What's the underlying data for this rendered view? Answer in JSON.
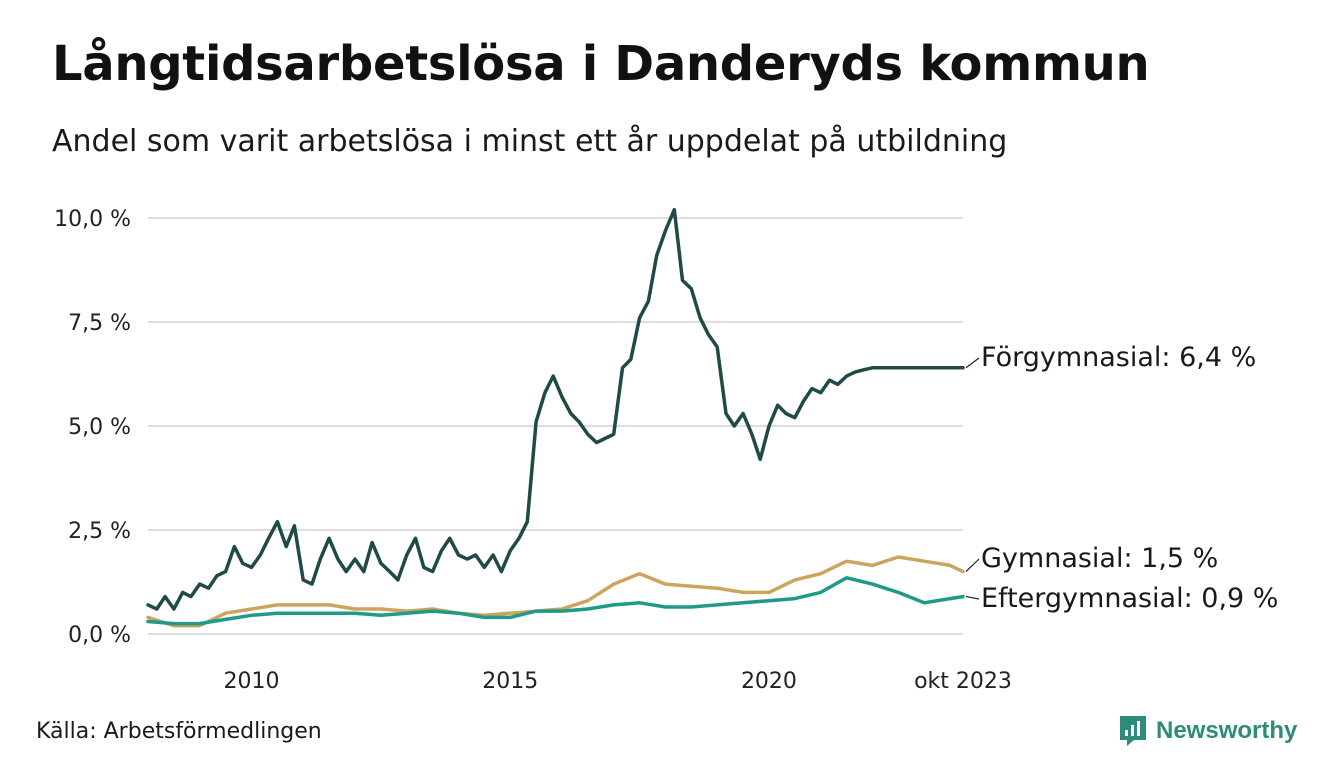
{
  "header": {
    "title": "Långtidsarbetslösa i Danderyds kommun",
    "subtitle": "Andel som varit arbetslösa i minst ett år uppdelat på utbildning"
  },
  "footer": {
    "source": "Källa: Arbetsförmedlingen",
    "brand": "Newsworthy"
  },
  "colors": {
    "forgymnasial": "#1f4a45",
    "gymnasial": "#cda45c",
    "eftergymnasial": "#1f9a8a",
    "grid": "#dddddd",
    "brand": "#2e8b7a"
  },
  "chart_data": {
    "type": "line",
    "title": "Långtidsarbetslösa i Danderyds kommun",
    "subtitle": "Andel som varit arbetslösa i minst ett år uppdelat på utbildning",
    "xlabel": "",
    "ylabel": "",
    "xlim": [
      2008.0,
      2023.75
    ],
    "ylim": [
      0,
      10
    ],
    "grid": true,
    "yticks": [
      0,
      2.5,
      5,
      7.5,
      10
    ],
    "ytick_labels": [
      "0,0 %",
      "2,5 %",
      "5,0 %",
      "7,5 %",
      "10,0 %"
    ],
    "xticks": [
      2010,
      2015,
      2020,
      2023.75
    ],
    "xtick_labels": [
      "2010",
      "2015",
      "2020",
      "okt 2023"
    ],
    "series": [
      {
        "name": "Förgymnasial",
        "end_label": "Förgymnasial: 6,4 %",
        "color": "#1f4a45",
        "x": [
          2008.0,
          2008.17,
          2008.33,
          2008.5,
          2008.67,
          2008.83,
          2009.0,
          2009.17,
          2009.33,
          2009.5,
          2009.67,
          2009.83,
          2010.0,
          2010.17,
          2010.33,
          2010.5,
          2010.67,
          2010.83,
          2011.0,
          2011.17,
          2011.33,
          2011.5,
          2011.67,
          2011.83,
          2012.0,
          2012.17,
          2012.33,
          2012.5,
          2012.67,
          2012.83,
          2013.0,
          2013.17,
          2013.33,
          2013.5,
          2013.67,
          2013.83,
          2014.0,
          2014.17,
          2014.33,
          2014.5,
          2014.67,
          2014.83,
          2015.0,
          2015.17,
          2015.33,
          2015.5,
          2015.67,
          2015.83,
          2016.0,
          2016.17,
          2016.33,
          2016.5,
          2016.67,
          2016.83,
          2017.0,
          2017.17,
          2017.33,
          2017.5,
          2017.67,
          2017.83,
          2018.0,
          2018.17,
          2018.33,
          2018.5,
          2018.67,
          2018.83,
          2019.0,
          2019.17,
          2019.33,
          2019.5,
          2019.67,
          2019.83,
          2020.0,
          2020.17,
          2020.33,
          2020.5,
          2020.67,
          2020.83,
          2021.0,
          2021.17,
          2021.33,
          2021.5,
          2021.67,
          2021.83,
          2022.0,
          2022.17,
          2022.33,
          2022.5,
          2022.67,
          2022.83,
          2023.0,
          2023.17,
          2023.33,
          2023.5,
          2023.75
        ],
        "values": [
          0.7,
          0.6,
          0.9,
          0.6,
          1.0,
          0.9,
          1.2,
          1.1,
          1.4,
          1.5,
          2.1,
          1.7,
          1.6,
          1.9,
          2.3,
          2.7,
          2.1,
          2.6,
          1.3,
          1.2,
          1.8,
          2.3,
          1.8,
          1.5,
          1.8,
          1.5,
          2.2,
          1.7,
          1.5,
          1.3,
          1.9,
          2.3,
          1.6,
          1.5,
          2.0,
          2.3,
          1.9,
          1.8,
          1.9,
          1.6,
          1.9,
          1.5,
          2.0,
          2.3,
          2.7,
          5.1,
          5.8,
          6.2,
          5.7,
          5.3,
          5.1,
          4.8,
          4.6,
          4.7,
          4.8,
          6.4,
          6.6,
          7.6,
          8.0,
          9.1,
          9.7,
          10.2,
          8.5,
          8.3,
          7.6,
          7.2,
          6.9,
          5.3,
          5.0,
          5.3,
          4.8,
          4.2,
          5.0,
          5.5,
          5.3,
          5.2,
          5.6,
          5.9,
          5.8,
          6.1,
          6.0,
          6.2,
          6.3,
          6.35,
          6.4,
          6.4,
          6.4,
          6.4,
          6.4,
          6.4,
          6.4,
          6.4,
          6.4,
          6.4,
          6.4
        ]
      },
      {
        "name": "Gymnasial",
        "end_label": "Gymnasial: 1,5 %",
        "color": "#cda45c",
        "x": [
          2008.0,
          2008.5,
          2009.0,
          2009.5,
          2010.0,
          2010.5,
          2011.0,
          2011.5,
          2012.0,
          2012.5,
          2013.0,
          2013.5,
          2014.0,
          2014.5,
          2015.0,
          2015.5,
          2016.0,
          2016.5,
          2017.0,
          2017.5,
          2018.0,
          2018.5,
          2019.0,
          2019.5,
          2020.0,
          2020.5,
          2021.0,
          2021.5,
          2022.0,
          2022.5,
          2023.0,
          2023.5,
          2023.75
        ],
        "values": [
          0.4,
          0.2,
          0.2,
          0.5,
          0.6,
          0.7,
          0.7,
          0.7,
          0.6,
          0.6,
          0.55,
          0.6,
          0.5,
          0.45,
          0.5,
          0.55,
          0.6,
          0.8,
          1.2,
          1.45,
          1.2,
          1.15,
          1.1,
          1.0,
          1.0,
          1.3,
          1.45,
          1.75,
          1.65,
          1.85,
          1.75,
          1.65,
          1.5
        ]
      },
      {
        "name": "Eftergymnasial",
        "end_label": "Eftergymnasial: 0,9 %",
        "color": "#1f9a8a",
        "x": [
          2008.0,
          2008.5,
          2009.0,
          2009.5,
          2010.0,
          2010.5,
          2011.0,
          2011.5,
          2012.0,
          2012.5,
          2013.0,
          2013.5,
          2014.0,
          2014.5,
          2015.0,
          2015.5,
          2016.0,
          2016.5,
          2017.0,
          2017.5,
          2018.0,
          2018.5,
          2019.0,
          2019.5,
          2020.0,
          2020.5,
          2021.0,
          2021.5,
          2022.0,
          2022.5,
          2023.0,
          2023.5,
          2023.75
        ],
        "values": [
          0.3,
          0.25,
          0.25,
          0.35,
          0.45,
          0.5,
          0.5,
          0.5,
          0.5,
          0.45,
          0.5,
          0.55,
          0.5,
          0.4,
          0.4,
          0.55,
          0.55,
          0.6,
          0.7,
          0.75,
          0.65,
          0.65,
          0.7,
          0.75,
          0.8,
          0.85,
          1.0,
          1.35,
          1.2,
          1.0,
          0.75,
          0.85,
          0.9
        ]
      }
    ]
  }
}
